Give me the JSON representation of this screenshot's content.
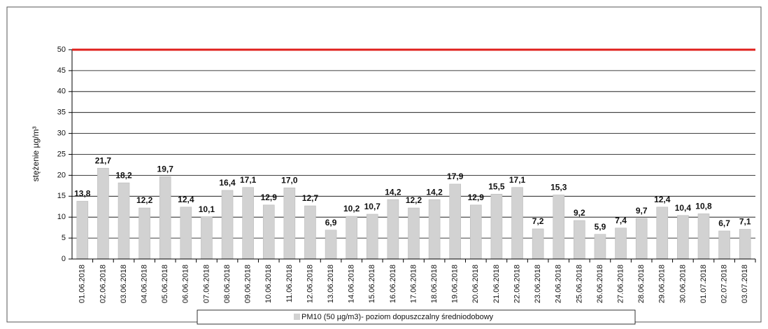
{
  "chart_data": {
    "type": "bar",
    "y_label": "stężenie µg/m³",
    "categories": [
      "01.06.2018",
      "02.06.2018",
      "03.06.2018",
      "04.06.2018",
      "05.06.2018",
      "06.06.2018",
      "07.06.2018",
      "08.06.2018",
      "09.06.2018",
      "10.06.2018",
      "11.06.2018",
      "12.06.2018",
      "13.06.2018",
      "14.06.2018",
      "15.06.2018",
      "16.06.2018",
      "17.06.2018",
      "18.06.2018",
      "19.06.2018",
      "20.06.2018",
      "21.06.2018",
      "22.06.2018",
      "23.06.2018",
      "24.06.2018",
      "25.06.2018",
      "26.06.2018",
      "27.06.2018",
      "28.06.2018",
      "29.06.2018",
      "30.06.2018",
      "01.07.2018",
      "02.07.2018",
      "03.07.2018"
    ],
    "series": [
      {
        "name": "PM10  (50 µg/m3)- poziom dopuszczalny średniodobowy",
        "color": "#d2d2d2",
        "values": [
          13.8,
          21.7,
          18.2,
          12.2,
          19.7,
          12.4,
          10.1,
          16.4,
          17.1,
          12.9,
          17.0,
          12.7,
          6.9,
          10.2,
          10.7,
          14.2,
          12.2,
          14.2,
          17.9,
          12.9,
          15.5,
          17.1,
          7.2,
          15.3,
          9.2,
          5.9,
          7.4,
          9.7,
          12.4,
          10.4,
          10.8,
          6.7,
          7.1
        ],
        "value_labels": [
          "13,8",
          "21,7",
          "18,2",
          "12,2",
          "19,7",
          "12,4",
          "10,1",
          "16,4",
          "17,1",
          "12,9",
          "17,0",
          "12,7",
          "6,9",
          "10,2",
          "10,7",
          "14,2",
          "12,2",
          "14,2",
          "17,9",
          "12,9",
          "15,5",
          "17,1",
          "7,2",
          "15,3",
          "9,2",
          "5,9",
          "7,4",
          "9,7",
          "12,4",
          "10,4",
          "10,8",
          "6,7",
          "7,1"
        ]
      }
    ],
    "limit_line": {
      "value": 50,
      "color": "#e0201c"
    },
    "ylim": [
      0,
      50
    ],
    "yticks": [
      0,
      5,
      10,
      15,
      20,
      25,
      30,
      35,
      40,
      45,
      50
    ],
    "grid": true
  }
}
